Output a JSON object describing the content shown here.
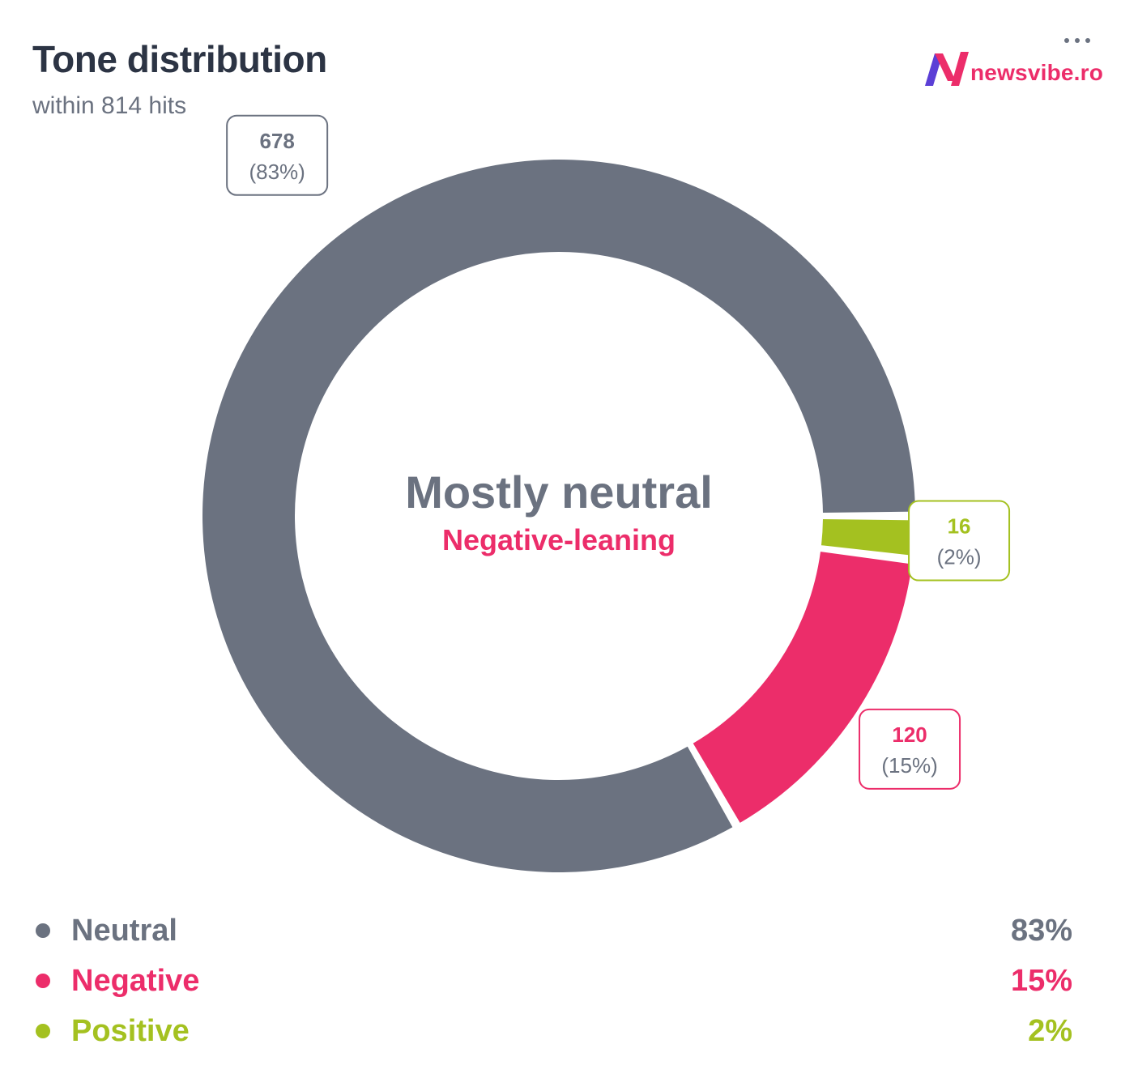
{
  "header": {
    "title": "Tone distribution",
    "subtitle": "within 814 hits"
  },
  "brand": {
    "name": "newsvibe.ro",
    "icon": "newsvibe-logo-icon",
    "accent": "#ec2d6a",
    "mark_secondary": "#5b3fd6"
  },
  "menu": {
    "icon": "more-horizontal-icon"
  },
  "center": {
    "headline": "Mostly neutral",
    "subline": "Negative-leaning",
    "headline_color": "#6b7280",
    "subline_color": "#ec2d6a"
  },
  "chart_data": {
    "type": "pie",
    "variant": "donut",
    "categories": [
      "Neutral",
      "Negative",
      "Positive"
    ],
    "values": [
      678,
      120,
      16
    ],
    "percents": [
      "83%",
      "15%",
      "2%"
    ],
    "label_percents": [
      "(83%)",
      "(15%)",
      "(2%)"
    ],
    "colors": [
      "#6b7280",
      "#ec2d6a",
      "#a4c120"
    ],
    "title": "Tone distribution",
    "subtitle": "within 814 hits",
    "legend": "bottom"
  },
  "legend": {
    "items": [
      {
        "label": "Neutral",
        "value": "83%",
        "color": "#6b7280"
      },
      {
        "label": "Negative",
        "value": "15%",
        "color": "#ec2d6a"
      },
      {
        "label": "Positive",
        "value": "2%",
        "color": "#a4c120"
      }
    ]
  }
}
